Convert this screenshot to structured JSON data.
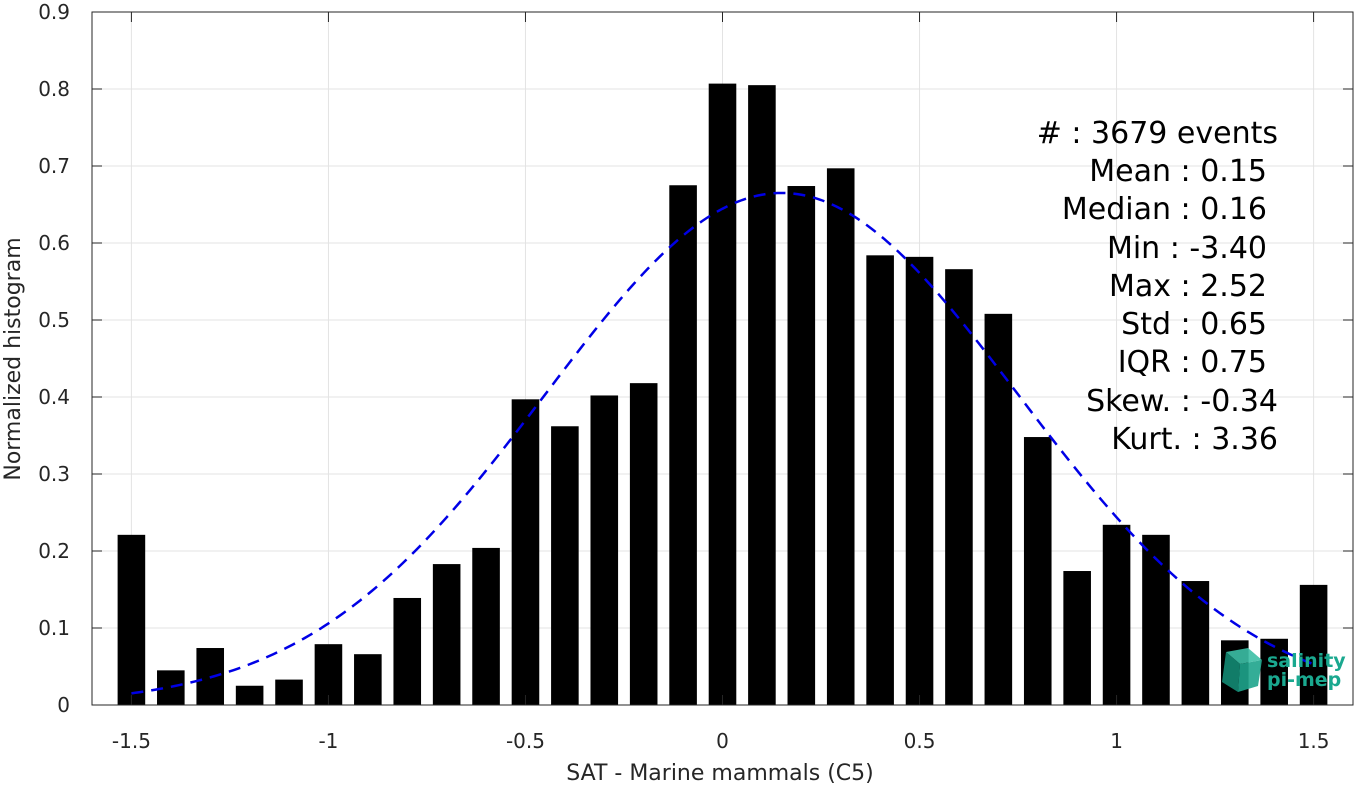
{
  "chart_data": {
    "type": "bar",
    "xlabel": "SAT - Marine mammals (C5)",
    "ylabel": "Normalized histogram",
    "xlim": [
      -1.6,
      1.6
    ],
    "ylim": [
      0,
      0.9
    ],
    "xticks": [
      -1.5,
      -1,
      -0.5,
      0,
      0.5,
      1,
      1.5
    ],
    "xtick_labels": [
      "-1.5",
      "-1",
      "-0.5",
      "0",
      "0.5",
      "1",
      "1.5"
    ],
    "yticks": [
      0,
      0.1,
      0.2,
      0.3,
      0.4,
      0.5,
      0.6,
      0.7,
      0.8,
      0.9
    ],
    "ytick_labels": [
      "0",
      "0.1",
      "0.2",
      "0.3",
      "0.4",
      "0.5",
      "0.6",
      "0.7",
      "0.8",
      "0.9"
    ],
    "grid": true,
    "bar_color": "#000000",
    "bins": [
      -1.5,
      -1.4,
      -1.3,
      -1.2,
      -1.1,
      -1.0,
      -0.9,
      -0.8,
      -0.7,
      -0.6,
      -0.5,
      -0.4,
      -0.3,
      -0.2,
      -0.1,
      0.0,
      0.1,
      0.2,
      0.3,
      0.4,
      0.5,
      0.6,
      0.7,
      0.8,
      0.9,
      1.0,
      1.1,
      1.2,
      1.3,
      1.4,
      1.5
    ],
    "values": [
      0.221,
      0.045,
      0.074,
      0.025,
      0.033,
      0.079,
      0.066,
      0.139,
      0.183,
      0.204,
      0.397,
      0.362,
      0.402,
      0.418,
      0.675,
      0.807,
      0.805,
      0.674,
      0.697,
      0.584,
      0.582,
      0.566,
      0.508,
      0.348,
      0.174,
      0.234,
      0.221,
      0.161,
      0.084,
      0.086,
      0.156
    ],
    "fit_curve": {
      "type": "gaussian",
      "mean": 0.15,
      "std": 0.6,
      "style": "dashed",
      "color": "#0000e6"
    },
    "stats": [
      {
        "label": "#  :",
        "value": "3679 events"
      },
      {
        "label": "Mean :",
        "value": "0.15"
      },
      {
        "label": "Median :",
        "value": "0.16"
      },
      {
        "label": "Min :",
        "value": "-3.40"
      },
      {
        "label": "Max :",
        "value": "2.52"
      },
      {
        "label": "Std :",
        "value": "0.65"
      },
      {
        "label": "IQR :",
        "value": "0.75"
      },
      {
        "label": "Skew. :",
        "value": "-0.34"
      },
      {
        "label": "Kurt. :",
        "value": "3.36"
      }
    ]
  },
  "stats_lines": [
    "#  : 3679 events",
    "Mean : 0.15",
    "Median : 0.16",
    "Min : -3.40",
    "Max : 2.52",
    "Std : 0.65",
    "IQR : 0.75",
    "Skew. : -0.34",
    "Kurt. : 3.36"
  ],
  "logo": {
    "line1": "salinity",
    "line2": "pi-mep",
    "color": "#1aa88f",
    "icon": "cube-logo-icon"
  }
}
